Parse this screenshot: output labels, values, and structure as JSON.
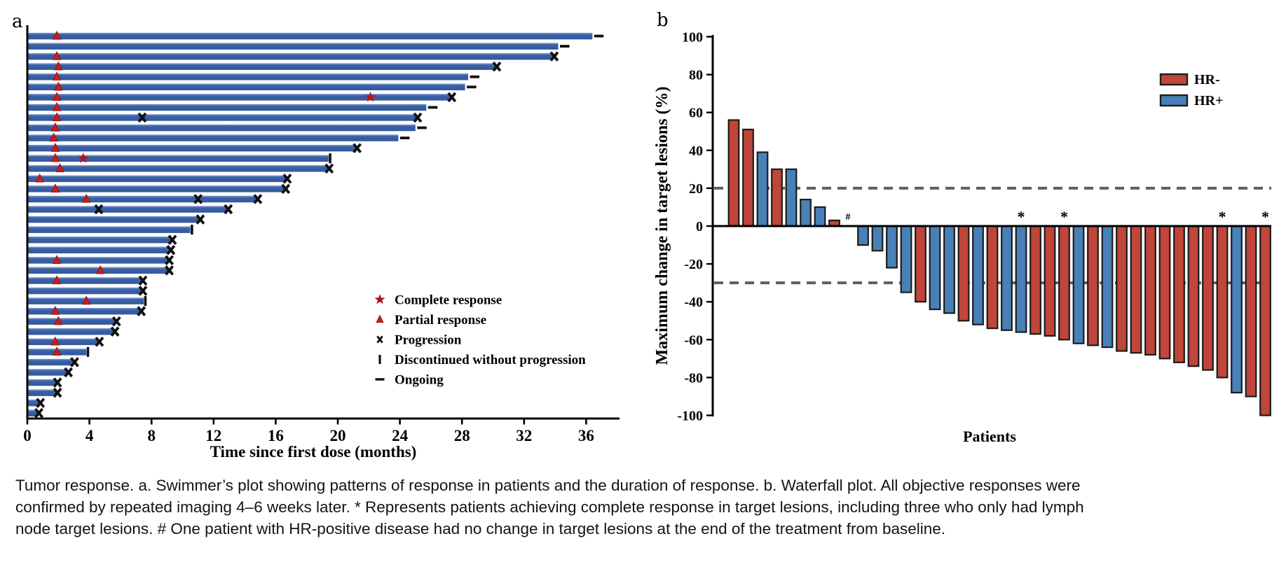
{
  "figure": {
    "panel_a_label": "a",
    "panel_b_label": "b"
  },
  "caption": {
    "lines": [
      "Tumor response. a. Swimmer’s plot showing patterns of response in patients and the duration of response. b. Waterfall plot. All objective responses were",
      "confirmed by repeated imaging 4–6 weeks later. * Represents patients achieving complete response in target lesions, including three who only had lymph",
      "node target lesions. # One patient with HR-positive disease had no change in target lesions at the end of the treatment from baseline."
    ]
  },
  "chart_data": [
    {
      "type": "bar",
      "name": "swimmers-plot",
      "orientation": "horizontal",
      "title": "",
      "xlabel": "Time since first dose (months)",
      "xticks": [
        0,
        4,
        8,
        12,
        16,
        20,
        24,
        28,
        32,
        36
      ],
      "xlim": [
        0,
        38
      ],
      "grid": false,
      "bar_color": "#3a62a8",
      "legend_position": "lower-right",
      "legend": [
        {
          "marker": "star",
          "color": "#b51414",
          "label": "Complete response"
        },
        {
          "marker": "triangle",
          "color": "#cf1a1a",
          "label": "Partial response"
        },
        {
          "marker": "cross",
          "color": "#101010",
          "label": "Progression"
        },
        {
          "marker": "vbar",
          "color": "#101010",
          "label": "Discontinued without progression"
        },
        {
          "marker": "dash",
          "color": "#101010",
          "label": "Ongoing"
        }
      ],
      "patients": [
        {
          "months": 36.4,
          "end": "ongoing",
          "pr": 1.9
        },
        {
          "months": 34.2,
          "end": "ongoing"
        },
        {
          "months": 33.9,
          "end": "progression",
          "pr": 1.9
        },
        {
          "months": 30.2,
          "end": "progression",
          "pr": 2.0
        },
        {
          "months": 28.4,
          "end": "ongoing",
          "pr": 1.9
        },
        {
          "months": 28.2,
          "end": "ongoing",
          "pr": 2.0
        },
        {
          "months": 27.3,
          "end": "progression",
          "pr": 1.9,
          "cr": 22.1
        },
        {
          "months": 25.7,
          "end": "ongoing",
          "pr": 1.9
        },
        {
          "months": 25.1,
          "end": "progression",
          "pr": 1.9,
          "prog": 7.4
        },
        {
          "months": 25.0,
          "end": "ongoing",
          "pr": 1.8
        },
        {
          "months": 23.9,
          "end": "ongoing",
          "pr": 1.7
        },
        {
          "months": 21.2,
          "end": "progression",
          "pr": 1.8
        },
        {
          "months": 19.4,
          "end": "discontinued",
          "pr": 1.8,
          "cr": 3.6
        },
        {
          "months": 19.4,
          "end": "progression",
          "pr": 2.1
        },
        {
          "months": 16.7,
          "end": "progression",
          "pr": 0.8
        },
        {
          "months": 16.6,
          "end": "progression",
          "pr": 1.8
        },
        {
          "months": 14.8,
          "end": "progression",
          "pr": 3.8,
          "prog": 11.0
        },
        {
          "months": 12.9,
          "end": "progression",
          "prog": 4.6
        },
        {
          "months": 11.1,
          "end": "progression"
        },
        {
          "months": 10.5,
          "end": "discontinued"
        },
        {
          "months": 9.3,
          "end": "progression"
        },
        {
          "months": 9.2,
          "end": "progression"
        },
        {
          "months": 9.1,
          "end": "progression",
          "pr": 1.9
        },
        {
          "months": 9.1,
          "end": "progression",
          "pr": 4.7
        },
        {
          "months": 7.4,
          "end": "progression",
          "pr": 1.9
        },
        {
          "months": 7.4,
          "end": "progression"
        },
        {
          "months": 7.5,
          "end": "discontinued",
          "pr": 3.8
        },
        {
          "months": 7.3,
          "end": "progression",
          "pr": 1.8
        },
        {
          "months": 5.7,
          "end": "progression",
          "pr": 2.0
        },
        {
          "months": 5.6,
          "end": "progression"
        },
        {
          "months": 4.6,
          "end": "progression",
          "pr": 1.8
        },
        {
          "months": 3.8,
          "end": "discontinued",
          "pr": 1.9
        },
        {
          "months": 3.0,
          "end": "progression"
        },
        {
          "months": 2.6,
          "end": "progression"
        },
        {
          "months": 1.9,
          "end": "progression"
        },
        {
          "months": 1.9,
          "end": "progression"
        },
        {
          "months": 0.8,
          "end": "progression"
        },
        {
          "months": 0.7,
          "end": "progression"
        }
      ]
    },
    {
      "type": "bar",
      "name": "waterfall-plot",
      "title": "",
      "xlabel": "Patients",
      "ylabel": "Maximum change in target lesions (%)",
      "ylim": [
        -100,
        100
      ],
      "yticks": [
        100,
        80,
        60,
        40,
        20,
        0,
        -20,
        -40,
        -60,
        -80,
        -100
      ],
      "reference_lines": [
        20,
        -30
      ],
      "reference_line_color": "#5f5f5f",
      "legend_position": "upper-right",
      "legend": [
        {
          "label": "HR-",
          "color": "#c0453a"
        },
        {
          "label": "HR+",
          "color": "#4880b8"
        }
      ],
      "bars": [
        {
          "value": 56,
          "group": "HR-"
        },
        {
          "value": 51,
          "group": "HR-"
        },
        {
          "value": 39,
          "group": "HR+"
        },
        {
          "value": 30,
          "group": "HR-"
        },
        {
          "value": 30,
          "group": "HR+"
        },
        {
          "value": 14,
          "group": "HR+"
        },
        {
          "value": 10,
          "group": "HR+"
        },
        {
          "value": 3,
          "group": "HR-"
        },
        {
          "value": 0,
          "group": "HR+",
          "annotation": "#"
        },
        {
          "value": -10,
          "group": "HR+"
        },
        {
          "value": -13,
          "group": "HR+"
        },
        {
          "value": -22,
          "group": "HR+"
        },
        {
          "value": -35,
          "group": "HR+"
        },
        {
          "value": -40,
          "group": "HR-"
        },
        {
          "value": -44,
          "group": "HR+"
        },
        {
          "value": -46,
          "group": "HR+"
        },
        {
          "value": -50,
          "group": "HR-"
        },
        {
          "value": -52,
          "group": "HR+"
        },
        {
          "value": -54,
          "group": "HR-"
        },
        {
          "value": -55,
          "group": "HR+"
        },
        {
          "value": -56,
          "group": "HR+",
          "annotation": "*"
        },
        {
          "value": -57,
          "group": "HR-"
        },
        {
          "value": -58,
          "group": "HR-"
        },
        {
          "value": -60,
          "group": "HR-",
          "annotation": "*"
        },
        {
          "value": -62,
          "group": "HR+"
        },
        {
          "value": -63,
          "group": "HR-"
        },
        {
          "value": -64,
          "group": "HR+"
        },
        {
          "value": -66,
          "group": "HR-"
        },
        {
          "value": -67,
          "group": "HR-"
        },
        {
          "value": -68,
          "group": "HR-"
        },
        {
          "value": -70,
          "group": "HR-"
        },
        {
          "value": -72,
          "group": "HR-"
        },
        {
          "value": -74,
          "group": "HR-"
        },
        {
          "value": -76,
          "group": "HR-"
        },
        {
          "value": -80,
          "group": "HR-",
          "annotation": "*"
        },
        {
          "value": -88,
          "group": "HR+"
        },
        {
          "value": -90,
          "group": "HR-"
        },
        {
          "value": -100,
          "group": "HR-",
          "annotation": "*"
        }
      ]
    }
  ]
}
